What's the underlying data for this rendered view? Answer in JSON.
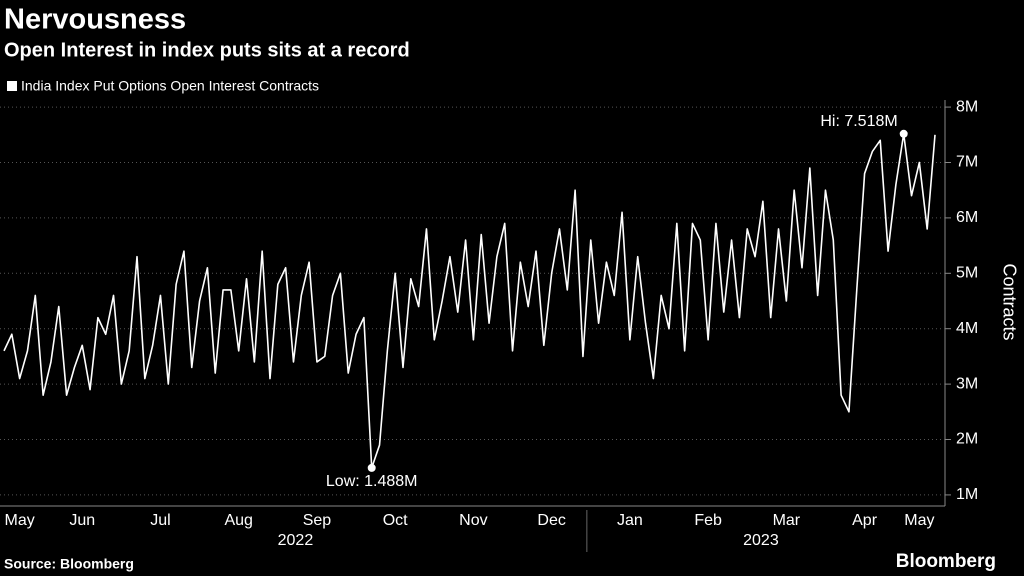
{
  "chart_data": {
    "type": "line",
    "title": "Nervousness",
    "subtitle": "Open Interest in index puts sits at a record",
    "y_label": "Contracts",
    "source": "Source: Bloomberg",
    "brand": "Bloomberg",
    "high_label": "Hi: 7.518M",
    "low_label": "Low: 1.488M",
    "year_labels": [
      "2022",
      "2023"
    ],
    "categories": [
      null,
      null,
      "May",
      null,
      null,
      null,
      null,
      null,
      null,
      null,
      "Jun",
      null,
      null,
      null,
      null,
      null,
      null,
      null,
      null,
      null,
      "Jul",
      null,
      null,
      null,
      null,
      null,
      null,
      null,
      null,
      null,
      "Aug",
      null,
      null,
      null,
      null,
      null,
      null,
      null,
      null,
      null,
      "Sep",
      null,
      null,
      null,
      null,
      null,
      null,
      null,
      null,
      null,
      "Oct",
      null,
      null,
      null,
      null,
      null,
      null,
      null,
      null,
      null,
      "Nov",
      null,
      null,
      null,
      null,
      null,
      null,
      null,
      null,
      null,
      "Dec",
      null,
      null,
      null,
      null,
      null,
      null,
      null,
      null,
      null,
      "Jan",
      null,
      null,
      null,
      null,
      null,
      null,
      null,
      null,
      null,
      "Feb",
      null,
      null,
      null,
      null,
      null,
      null,
      null,
      null,
      null,
      "Mar",
      null,
      null,
      null,
      null,
      null,
      null,
      null,
      null,
      null,
      "Apr",
      null,
      null,
      null,
      null,
      null,
      null,
      "May",
      null,
      null
    ],
    "series": [
      {
        "name": "India Index Put Options Open Interest Contracts",
        "color": "#ffffff",
        "values": [
          3.6,
          3.9,
          3.1,
          3.6,
          4.6,
          2.8,
          3.4,
          4.4,
          2.8,
          3.3,
          3.7,
          2.9,
          4.2,
          3.9,
          4.6,
          3.0,
          3.6,
          5.3,
          3.1,
          3.7,
          4.6,
          3.0,
          4.8,
          5.4,
          3.3,
          4.5,
          5.1,
          3.2,
          4.7,
          4.7,
          3.6,
          4.9,
          3.4,
          5.4,
          3.1,
          4.8,
          5.1,
          3.4,
          4.6,
          5.2,
          3.4,
          3.5,
          4.6,
          5.0,
          3.2,
          3.9,
          4.2,
          1.488,
          1.9,
          3.6,
          5.0,
          3.3,
          4.9,
          4.4,
          5.8,
          3.8,
          4.5,
          5.3,
          4.3,
          5.6,
          3.8,
          5.7,
          4.1,
          5.3,
          5.9,
          3.6,
          5.2,
          4.4,
          5.4,
          3.7,
          5.0,
          5.8,
          4.7,
          6.5,
          3.5,
          5.6,
          4.1,
          5.2,
          4.6,
          6.1,
          3.8,
          5.3,
          4.1,
          3.1,
          4.6,
          4.0,
          5.9,
          3.6,
          5.9,
          5.6,
          3.8,
          5.9,
          4.3,
          5.6,
          4.2,
          5.8,
          5.3,
          6.3,
          4.2,
          5.8,
          4.5,
          6.5,
          5.1,
          6.9,
          4.6,
          6.5,
          5.6,
          2.8,
          2.5,
          4.7,
          6.8,
          7.2,
          7.4,
          5.4,
          6.6,
          7.518,
          6.4,
          7.0,
          5.8,
          7.5
        ]
      }
    ],
    "ylim": [
      0.8,
      8.2
    ],
    "yticks": [
      {
        "value": 1,
        "label": "1M"
      },
      {
        "value": 2,
        "label": "2M"
      },
      {
        "value": 3,
        "label": "3M"
      },
      {
        "value": 4,
        "label": "4M"
      },
      {
        "value": 5,
        "label": "5M"
      },
      {
        "value": 6,
        "label": "6M"
      },
      {
        "value": 7,
        "label": "7M"
      },
      {
        "value": 8,
        "label": "8M"
      }
    ],
    "grid": true
  }
}
